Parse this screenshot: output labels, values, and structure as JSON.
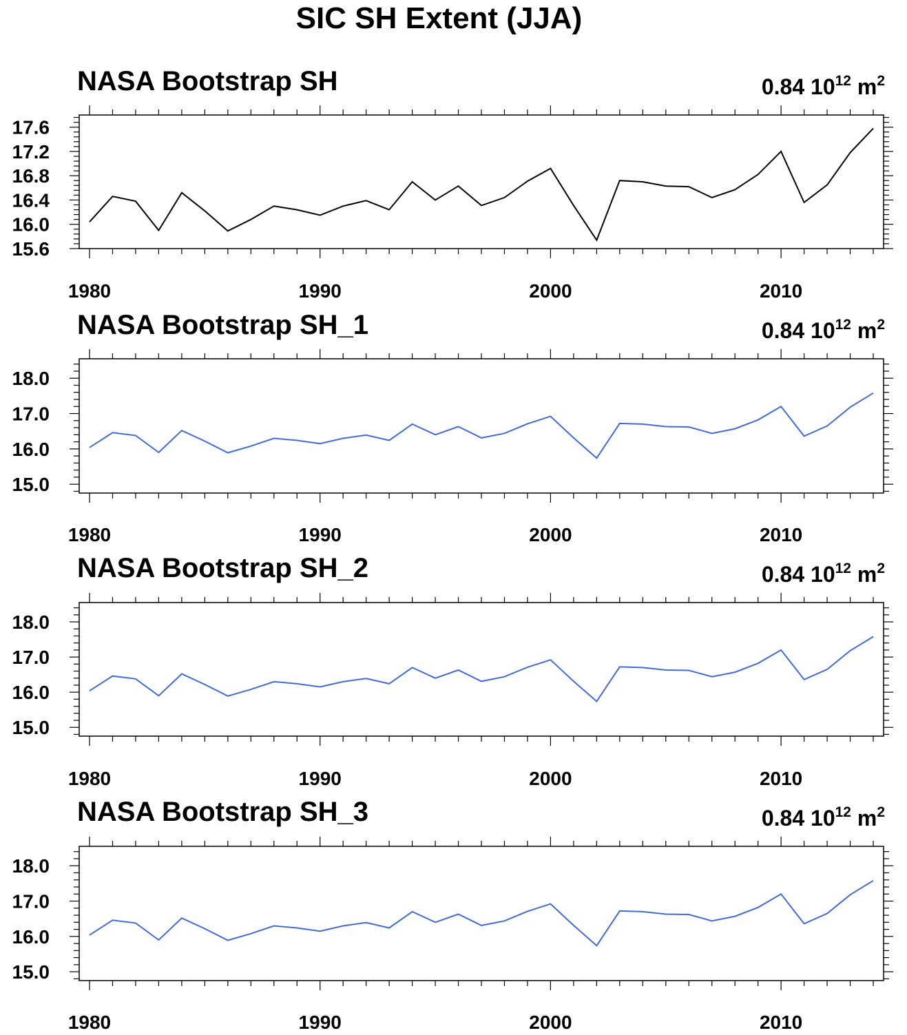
{
  "figure": {
    "title": "SIC SH Extent (JJA)"
  },
  "chart_data": [
    {
      "type": "line",
      "title": "NASA Bootstrap SH",
      "stat": {
        "value": "0.84",
        "base": "10",
        "exponent": "12",
        "unit": "m",
        "unit_exp": "2"
      },
      "x": [
        1980,
        1981,
        1982,
        1983,
        1984,
        1985,
        1986,
        1987,
        1988,
        1989,
        1990,
        1991,
        1992,
        1993,
        1994,
        1995,
        1996,
        1997,
        1998,
        1999,
        2000,
        2001,
        2002,
        2003,
        2004,
        2005,
        2006,
        2007,
        2008,
        2009,
        2010,
        2011,
        2012,
        2013,
        2014
      ],
      "series": [
        {
          "values": [
            16.04,
            16.46,
            16.38,
            15.9,
            16.52,
            16.22,
            15.89,
            16.08,
            16.3,
            16.24,
            16.15,
            16.3,
            16.39,
            16.24,
            16.7,
            16.4,
            16.63,
            16.31,
            16.44,
            16.71,
            16.92,
            16.31,
            15.74,
            16.72,
            16.7,
            16.63,
            16.62,
            16.44,
            16.57,
            16.82,
            17.2,
            16.36,
            16.65,
            17.18,
            17.58
          ],
          "color": "#000000"
        }
      ],
      "xlim": [
        1980,
        2014.5
      ],
      "ylim": [
        15.6,
        17.8
      ],
      "yticks": [
        "15.6",
        "16.0",
        "16.4",
        "16.8",
        "17.2",
        "17.6"
      ],
      "xticks": [
        "1980",
        "1990",
        "2000",
        "2010"
      ]
    },
    {
      "type": "line",
      "title": "NASA Bootstrap SH_1",
      "stat": {
        "value": "0.84",
        "base": "10",
        "exponent": "12",
        "unit": "m",
        "unit_exp": "2"
      },
      "x": [
        1980,
        1981,
        1982,
        1983,
        1984,
        1985,
        1986,
        1987,
        1988,
        1989,
        1990,
        1991,
        1992,
        1993,
        1994,
        1995,
        1996,
        1997,
        1998,
        1999,
        2000,
        2001,
        2002,
        2003,
        2004,
        2005,
        2006,
        2007,
        2008,
        2009,
        2010,
        2011,
        2012,
        2013,
        2014
      ],
      "series": [
        {
          "values": [
            16.04,
            16.46,
            16.38,
            15.9,
            16.52,
            16.22,
            15.89,
            16.08,
            16.3,
            16.24,
            16.15,
            16.3,
            16.39,
            16.24,
            16.7,
            16.4,
            16.63,
            16.31,
            16.44,
            16.71,
            16.92,
            16.31,
            15.74,
            16.72,
            16.7,
            16.63,
            16.62,
            16.44,
            16.57,
            16.82,
            17.2,
            16.36,
            16.65,
            17.18,
            17.58
          ],
          "color": "#4169e1"
        }
      ],
      "xlim": [
        1980,
        2014.5
      ],
      "ylim": [
        14.75,
        18.55
      ],
      "yticks": [
        "15.0",
        "16.0",
        "17.0",
        "18.0"
      ],
      "xticks": [
        "1980",
        "1990",
        "2000",
        "2010"
      ]
    },
    {
      "type": "line",
      "title": "NASA Bootstrap SH_2",
      "stat": {
        "value": "0.84",
        "base": "10",
        "exponent": "12",
        "unit": "m",
        "unit_exp": "2"
      },
      "x": [
        1980,
        1981,
        1982,
        1983,
        1984,
        1985,
        1986,
        1987,
        1988,
        1989,
        1990,
        1991,
        1992,
        1993,
        1994,
        1995,
        1996,
        1997,
        1998,
        1999,
        2000,
        2001,
        2002,
        2003,
        2004,
        2005,
        2006,
        2007,
        2008,
        2009,
        2010,
        2011,
        2012,
        2013,
        2014
      ],
      "series": [
        {
          "values": [
            16.04,
            16.46,
            16.38,
            15.9,
            16.52,
            16.22,
            15.89,
            16.08,
            16.3,
            16.24,
            16.15,
            16.3,
            16.39,
            16.24,
            16.7,
            16.4,
            16.63,
            16.31,
            16.44,
            16.71,
            16.92,
            16.31,
            15.74,
            16.72,
            16.7,
            16.63,
            16.62,
            16.44,
            16.57,
            16.82,
            17.2,
            16.36,
            16.65,
            17.18,
            17.58
          ],
          "color": "#4169e1"
        }
      ],
      "xlim": [
        1980,
        2014.5
      ],
      "ylim": [
        14.75,
        18.55
      ],
      "yticks": [
        "15.0",
        "16.0",
        "17.0",
        "18.0"
      ],
      "xticks": [
        "1980",
        "1990",
        "2000",
        "2010"
      ]
    },
    {
      "type": "line",
      "title": "NASA Bootstrap SH_3",
      "stat": {
        "value": "0.84",
        "base": "10",
        "exponent": "12",
        "unit": "m",
        "unit_exp": "2"
      },
      "x": [
        1980,
        1981,
        1982,
        1983,
        1984,
        1985,
        1986,
        1987,
        1988,
        1989,
        1990,
        1991,
        1992,
        1993,
        1994,
        1995,
        1996,
        1997,
        1998,
        1999,
        2000,
        2001,
        2002,
        2003,
        2004,
        2005,
        2006,
        2007,
        2008,
        2009,
        2010,
        2011,
        2012,
        2013,
        2014
      ],
      "series": [
        {
          "values": [
            16.04,
            16.46,
            16.38,
            15.9,
            16.52,
            16.22,
            15.89,
            16.08,
            16.3,
            16.24,
            16.15,
            16.3,
            16.39,
            16.24,
            16.7,
            16.4,
            16.63,
            16.31,
            16.44,
            16.71,
            16.92,
            16.31,
            15.74,
            16.72,
            16.7,
            16.63,
            16.62,
            16.44,
            16.57,
            16.82,
            17.2,
            16.36,
            16.65,
            17.18,
            17.58
          ],
          "color": "#4169e1"
        }
      ],
      "xlim": [
        1980,
        2014.5
      ],
      "ylim": [
        14.75,
        18.55
      ],
      "yticks": [
        "15.0",
        "16.0",
        "17.0",
        "18.0"
      ],
      "xticks": [
        "1980",
        "1990",
        "2000",
        "2010"
      ]
    }
  ]
}
